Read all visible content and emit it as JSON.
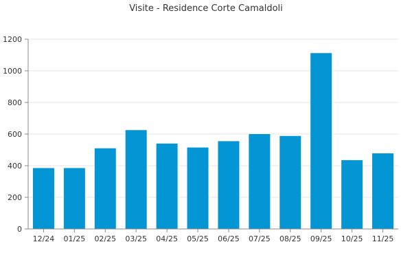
{
  "chart_data": {
    "type": "bar",
    "title": "Visite - Residence Corte Camaldoli",
    "xlabel": "",
    "ylabel": "",
    "categories": [
      "12/24",
      "01/25",
      "02/25",
      "03/25",
      "04/25",
      "05/25",
      "06/25",
      "07/25",
      "08/25",
      "09/25",
      "10/25",
      "11/25"
    ],
    "values": [
      385,
      385,
      510,
      625,
      540,
      515,
      555,
      600,
      588,
      1112,
      435,
      478
    ],
    "ylim": [
      0,
      1200
    ],
    "yticks": [
      0,
      200,
      400,
      600,
      800,
      1000,
      1200
    ],
    "grid": true,
    "legend": "none",
    "colors": {
      "bar": "#0496d4",
      "axis": "#888888",
      "grid": "#e6e6e6",
      "text": "#333333"
    }
  }
}
